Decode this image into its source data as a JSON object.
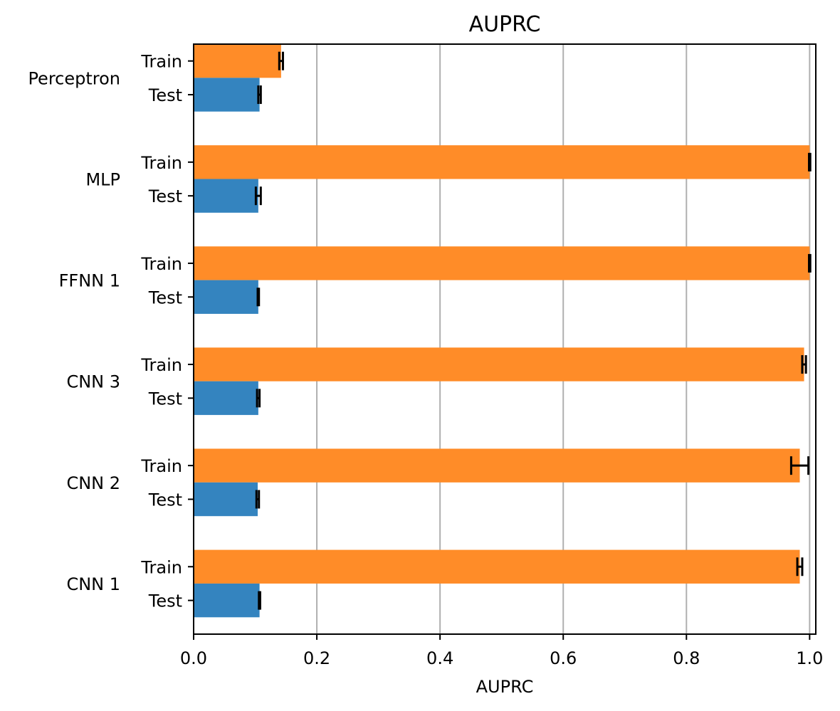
{
  "chart_data": {
    "type": "bar",
    "orientation": "horizontal",
    "title": "AUPRC",
    "xlabel": "AUPRC",
    "ylabel": "",
    "xlim": [
      0.0,
      1.01
    ],
    "xticks": [
      0.0,
      0.2,
      0.4,
      0.6,
      0.8,
      1.0
    ],
    "xtick_labels": [
      "0.0",
      "0.2",
      "0.4",
      "0.6",
      "0.8",
      "1.0"
    ],
    "grid": "x",
    "legend": "none",
    "colors": {
      "Train": "#ff8c28",
      "Test": "#3484bf"
    },
    "groups": [
      {
        "name": "Perceptron",
        "bars": [
          {
            "label": "Train",
            "value": 0.142,
            "err": 0.003
          },
          {
            "label": "Test",
            "value": 0.107,
            "err": 0.002
          }
        ]
      },
      {
        "name": "MLP",
        "bars": [
          {
            "label": "Train",
            "value": 1.0,
            "err": 0.001
          },
          {
            "label": "Test",
            "value": 0.105,
            "err": 0.004
          }
        ]
      },
      {
        "name": "FFNN 1",
        "bars": [
          {
            "label": "Train",
            "value": 1.0,
            "err": 0.001
          },
          {
            "label": "Test",
            "value": 0.105,
            "err": 0.001
          }
        ]
      },
      {
        "name": "CNN 3",
        "bars": [
          {
            "label": "Train",
            "value": 0.991,
            "err": 0.003
          },
          {
            "label": "Test",
            "value": 0.105,
            "err": 0.002
          }
        ]
      },
      {
        "name": "CNN 2",
        "bars": [
          {
            "label": "Train",
            "value": 0.984,
            "err": 0.014
          },
          {
            "label": "Test",
            "value": 0.104,
            "err": 0.002
          }
        ]
      },
      {
        "name": "CNN 1",
        "bars": [
          {
            "label": "Train",
            "value": 0.984,
            "err": 0.004
          },
          {
            "label": "Test",
            "value": 0.107,
            "err": 0.001
          }
        ]
      }
    ]
  }
}
